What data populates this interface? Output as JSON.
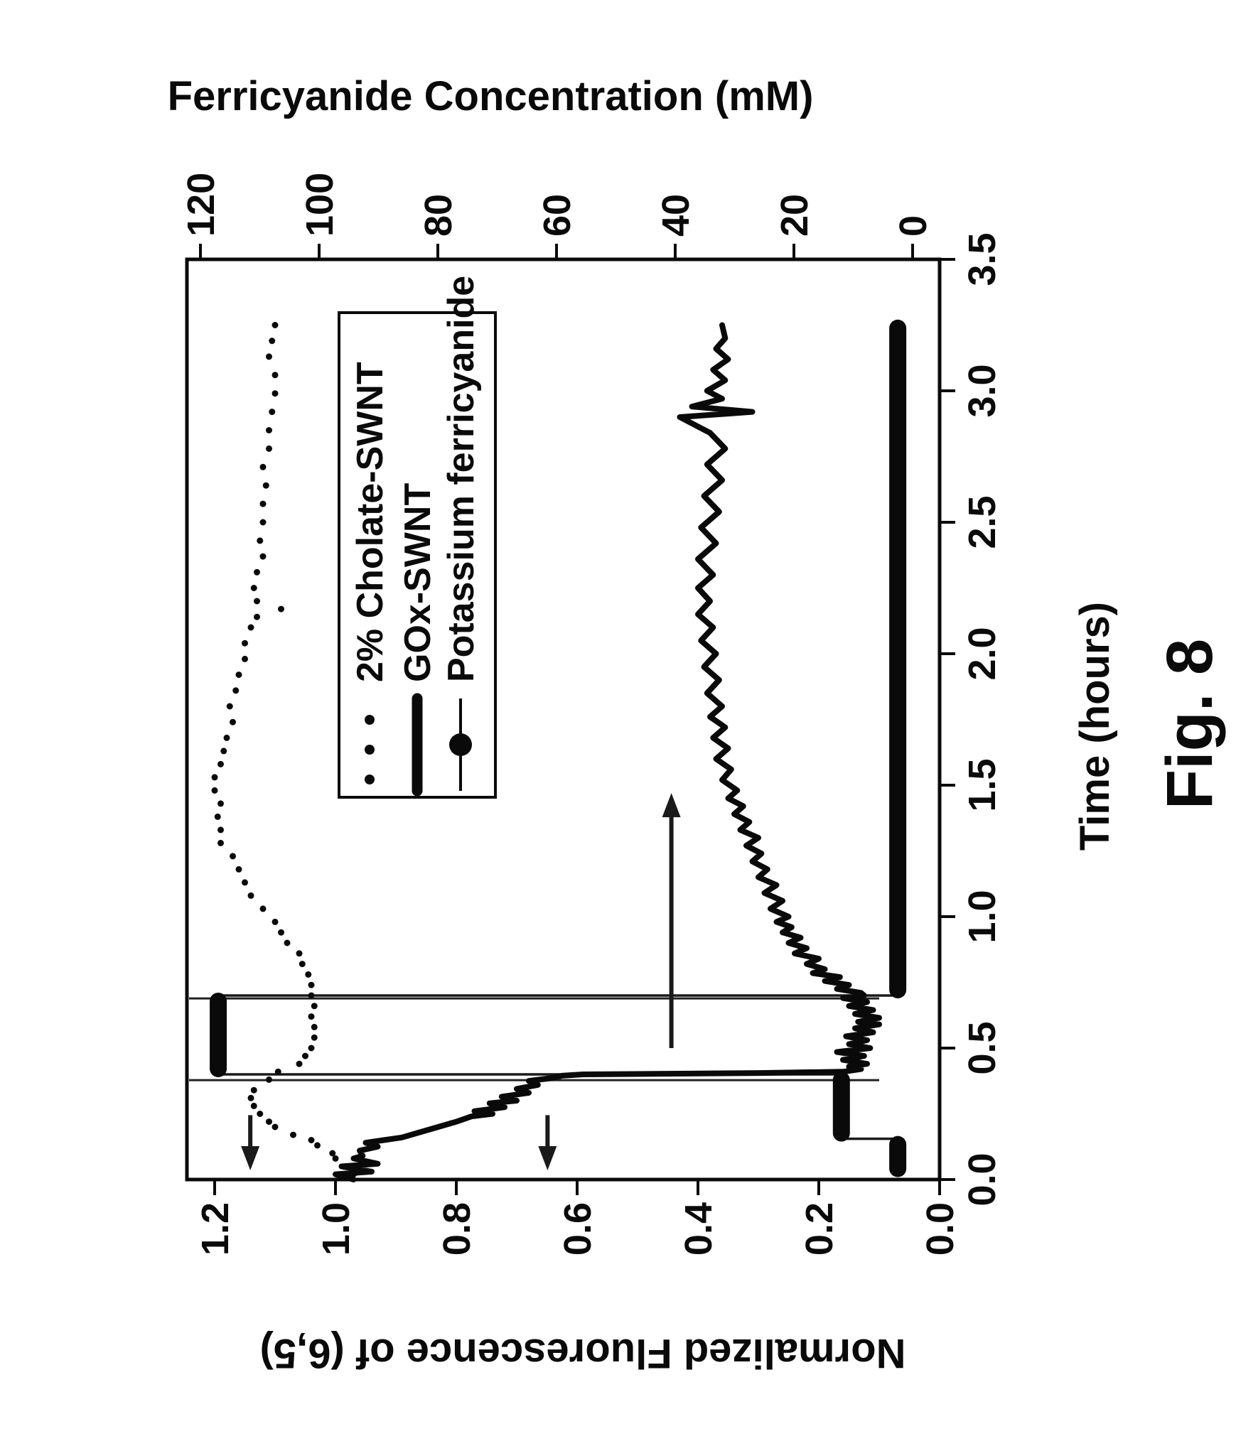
{
  "figure": {
    "caption": "Fig. 8"
  },
  "axes": {
    "time": {
      "title": "Time (hours)",
      "ticks": [
        "0.0",
        "0.5",
        "1.0",
        "1.5",
        "2.0",
        "2.5",
        "3.0",
        "3.5"
      ],
      "range": [
        0,
        3.5
      ]
    },
    "fluorescence": {
      "title": "Normalized Fluorescence of (6,5)",
      "ticks": [
        "0.0",
        "0.2",
        "0.4",
        "0.6",
        "0.8",
        "1.0",
        "1.2"
      ],
      "range": [
        0,
        1.25
      ]
    },
    "concentration": {
      "title": "Ferricyanide Concentration (mM)",
      "ticks": [
        "0",
        "20",
        "40",
        "60",
        "80",
        "100",
        "120"
      ],
      "range": [
        0,
        125
      ]
    }
  },
  "legend": {
    "items": [
      {
        "label": "2% Cholate-SWNT",
        "marker": "dotted"
      },
      {
        "label": "GOx-SWNT",
        "marker": "thick-line"
      },
      {
        "label": "Potassium ferricyanide",
        "marker": "line-circle"
      }
    ]
  },
  "colors": {
    "ink": "#0a0a0a",
    "background": "#ffffff"
  },
  "chart_data": {
    "type": "line",
    "title": "",
    "xlabel": "Time (hours)",
    "ylabel_left": "Normalized Fluorescence of (6,5)",
    "ylabel_right": "Ferricyanide Concentration (mM)",
    "xlim": [
      0,
      3.5
    ],
    "ylim_left": [
      0,
      1.25
    ],
    "ylim_right": [
      0,
      125
    ],
    "grid": false,
    "legend_position": "upper-right-inside",
    "event_lines_t": [
      0.378,
      0.689
    ],
    "annotations": [
      {
        "type": "arrow",
        "axis": "left",
        "dir": "left",
        "F": 1.141,
        "t_tail": 0.245,
        "t_head": 0.035
      },
      {
        "type": "arrow",
        "axis": "left",
        "dir": "left",
        "F": 0.649,
        "t_tail": 0.245,
        "t_head": 0.035
      },
      {
        "type": "arrow",
        "axis": "right",
        "dir": "right",
        "F": 0.444,
        "t_tail": 0.5,
        "t_head": 1.47
      }
    ],
    "series": [
      {
        "name": "2% Cholate-SWNT",
        "axis": "left",
        "style": "scatter-dots",
        "points": [
          [
            0.02,
            0.97
          ],
          [
            0.05,
            0.98
          ],
          [
            0.08,
            1.0
          ],
          [
            0.1,
            1.005
          ],
          [
            0.13,
            1.03
          ],
          [
            0.15,
            1.04
          ],
          [
            0.17,
            1.07
          ],
          [
            0.2,
            1.1
          ],
          [
            0.22,
            1.11
          ],
          [
            0.25,
            1.125
          ],
          [
            0.28,
            1.135
          ],
          [
            0.31,
            1.14
          ],
          [
            0.34,
            1.135
          ],
          [
            0.38,
            1.11
          ],
          [
            0.41,
            1.095
          ],
          [
            0.44,
            1.06
          ],
          [
            0.47,
            1.05
          ],
          [
            0.5,
            1.04
          ],
          [
            0.54,
            1.035
          ],
          [
            0.58,
            1.035
          ],
          [
            0.62,
            1.04
          ],
          [
            0.66,
            1.035
          ],
          [
            0.7,
            1.04
          ],
          [
            0.74,
            1.04
          ],
          [
            0.78,
            1.045
          ],
          [
            0.82,
            1.055
          ],
          [
            0.86,
            1.06
          ],
          [
            0.9,
            1.08
          ],
          [
            0.94,
            1.09
          ],
          [
            0.98,
            1.1
          ],
          [
            1.03,
            1.12
          ],
          [
            1.08,
            1.14
          ],
          [
            1.13,
            1.15
          ],
          [
            1.18,
            1.16
          ],
          [
            1.23,
            1.17
          ],
          [
            1.28,
            1.19
          ],
          [
            1.33,
            1.19
          ],
          [
            1.38,
            1.195
          ],
          [
            1.43,
            1.19
          ],
          [
            1.48,
            1.2
          ],
          [
            1.53,
            1.2
          ],
          [
            1.58,
            1.19
          ],
          [
            1.63,
            1.185
          ],
          [
            1.68,
            1.18
          ],
          [
            1.74,
            1.17
          ],
          [
            1.8,
            1.175
          ],
          [
            1.86,
            1.165
          ],
          [
            1.92,
            1.16
          ],
          [
            1.98,
            1.15
          ],
          [
            2.04,
            1.15
          ],
          [
            2.1,
            1.14
          ],
          [
            2.14,
            1.13
          ],
          [
            2.17,
            1.09
          ],
          [
            2.2,
            1.13
          ],
          [
            2.25,
            1.135
          ],
          [
            2.31,
            1.13
          ],
          [
            2.37,
            1.12
          ],
          [
            2.43,
            1.125
          ],
          [
            2.5,
            1.12
          ],
          [
            2.57,
            1.12
          ],
          [
            2.64,
            1.115
          ],
          [
            2.71,
            1.12
          ],
          [
            2.78,
            1.11
          ],
          [
            2.85,
            1.11
          ],
          [
            2.92,
            1.105
          ],
          [
            2.99,
            1.1
          ],
          [
            3.06,
            1.1
          ],
          [
            3.13,
            1.11
          ],
          [
            3.19,
            1.105
          ],
          [
            3.25,
            1.1
          ]
        ]
      },
      {
        "name": "GOx-SWNT",
        "axis": "left",
        "style": "thick-noisy-line",
        "points": [
          [
            0.0,
            0.97
          ],
          [
            0.02,
            1.0
          ],
          [
            0.03,
            0.94
          ],
          [
            0.05,
            0.99
          ],
          [
            0.06,
            0.93
          ],
          [
            0.08,
            0.97
          ],
          [
            0.09,
            0.955
          ],
          [
            0.11,
            0.96
          ],
          [
            0.125,
            0.93
          ],
          [
            0.14,
            0.95
          ],
          [
            0.15,
            0.92
          ],
          [
            0.16,
            0.89
          ],
          [
            0.18,
            0.86
          ],
          [
            0.2,
            0.83
          ],
          [
            0.22,
            0.8
          ],
          [
            0.24,
            0.775
          ],
          [
            0.25,
            0.74
          ],
          [
            0.26,
            0.77
          ],
          [
            0.275,
            0.72
          ],
          [
            0.29,
            0.745
          ],
          [
            0.3,
            0.7
          ],
          [
            0.315,
            0.725
          ],
          [
            0.33,
            0.68
          ],
          [
            0.345,
            0.7
          ],
          [
            0.36,
            0.665
          ],
          [
            0.375,
            0.68
          ],
          [
            0.385,
            0.645
          ],
          [
            0.395,
            0.625
          ],
          [
            0.4,
            0.59
          ],
          [
            0.405,
            0.3
          ],
          [
            0.41,
            0.16
          ],
          [
            0.42,
            0.13
          ],
          [
            0.43,
            0.15
          ],
          [
            0.44,
            0.12
          ],
          [
            0.455,
            0.16
          ],
          [
            0.47,
            0.125
          ],
          [
            0.485,
            0.17
          ],
          [
            0.5,
            0.115
          ],
          [
            0.515,
            0.15
          ],
          [
            0.53,
            0.12
          ],
          [
            0.545,
            0.155
          ],
          [
            0.56,
            0.11
          ],
          [
            0.575,
            0.14
          ],
          [
            0.59,
            0.1
          ],
          [
            0.6,
            0.135
          ],
          [
            0.615,
            0.1
          ],
          [
            0.63,
            0.14
          ],
          [
            0.645,
            0.11
          ],
          [
            0.66,
            0.15
          ],
          [
            0.675,
            0.12
          ],
          [
            0.69,
            0.16
          ],
          [
            0.7,
            0.125
          ],
          [
            0.71,
            0.13
          ],
          [
            0.725,
            0.17
          ],
          [
            0.74,
            0.15
          ],
          [
            0.755,
            0.19
          ],
          [
            0.77,
            0.165
          ],
          [
            0.785,
            0.21
          ],
          [
            0.8,
            0.19
          ],
          [
            0.82,
            0.22
          ],
          [
            0.84,
            0.2
          ],
          [
            0.86,
            0.24
          ],
          [
            0.88,
            0.22
          ],
          [
            0.9,
            0.25
          ],
          [
            0.92,
            0.23
          ],
          [
            0.94,
            0.26
          ],
          [
            0.96,
            0.245
          ],
          [
            0.98,
            0.27
          ],
          [
            1.0,
            0.25
          ],
          [
            1.03,
            0.28
          ],
          [
            1.06,
            0.26
          ],
          [
            1.09,
            0.29
          ],
          [
            1.12,
            0.27
          ],
          [
            1.15,
            0.3
          ],
          [
            1.18,
            0.285
          ],
          [
            1.21,
            0.31
          ],
          [
            1.24,
            0.295
          ],
          [
            1.27,
            0.32
          ],
          [
            1.3,
            0.3
          ],
          [
            1.33,
            0.33
          ],
          [
            1.36,
            0.315
          ],
          [
            1.39,
            0.34
          ],
          [
            1.42,
            0.325
          ],
          [
            1.45,
            0.35
          ],
          [
            1.48,
            0.335
          ],
          [
            1.52,
            0.36
          ],
          [
            1.56,
            0.345
          ],
          [
            1.6,
            0.37
          ],
          [
            1.64,
            0.35
          ],
          [
            1.68,
            0.375
          ],
          [
            1.72,
            0.355
          ],
          [
            1.76,
            0.38
          ],
          [
            1.8,
            0.36
          ],
          [
            1.85,
            0.385
          ],
          [
            1.9,
            0.365
          ],
          [
            1.95,
            0.39
          ],
          [
            2.0,
            0.37
          ],
          [
            2.05,
            0.395
          ],
          [
            2.1,
            0.375
          ],
          [
            2.15,
            0.4
          ],
          [
            2.2,
            0.38
          ],
          [
            2.25,
            0.4
          ],
          [
            2.3,
            0.375
          ],
          [
            2.36,
            0.4
          ],
          [
            2.42,
            0.37
          ],
          [
            2.48,
            0.395
          ],
          [
            2.54,
            0.365
          ],
          [
            2.6,
            0.39
          ],
          [
            2.66,
            0.36
          ],
          [
            2.72,
            0.385
          ],
          [
            2.78,
            0.355
          ],
          [
            2.84,
            0.38
          ],
          [
            2.9,
            0.43
          ],
          [
            2.92,
            0.31
          ],
          [
            2.94,
            0.41
          ],
          [
            2.97,
            0.36
          ],
          [
            3.0,
            0.385
          ],
          [
            3.04,
            0.355
          ],
          [
            3.08,
            0.375
          ],
          [
            3.12,
            0.35
          ],
          [
            3.16,
            0.37
          ],
          [
            3.2,
            0.355
          ],
          [
            3.25,
            0.36
          ]
        ]
      },
      {
        "name": "Potassium ferricyanide",
        "axis": "right",
        "style": "step-thick",
        "steps": [
          {
            "t0": 0.02,
            "t1": 0.155,
            "mM": 2.5
          },
          {
            "t0": 0.155,
            "t1": 0.4,
            "mM": 12
          },
          {
            "t0": 0.4,
            "t1": 0.7,
            "mM": 117
          },
          {
            "t0": 0.7,
            "t1": 3.26,
            "mM": 2.5
          }
        ]
      }
    ]
  }
}
